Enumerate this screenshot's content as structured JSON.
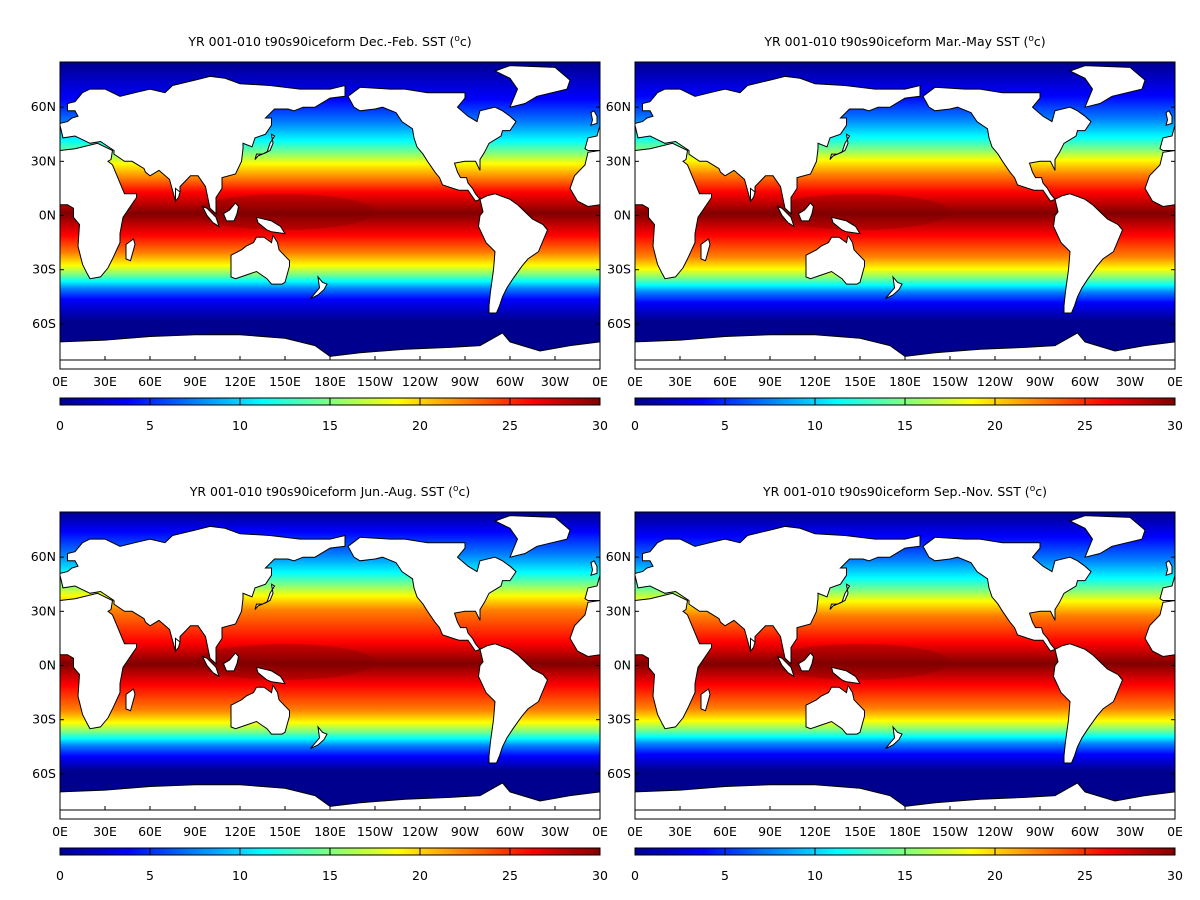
{
  "colormap_colors": [
    "#00008f",
    "#0000ff",
    "#0080ff",
    "#00ffff",
    "#80ff80",
    "#ffff00",
    "#ff8000",
    "#ff0000",
    "#800000"
  ],
  "colorbar_ticks": [
    "0",
    "5",
    "10",
    "15",
    "20",
    "25",
    "30"
  ],
  "lat_labels": [
    "60N",
    "30N",
    "0N",
    "30S",
    "60S"
  ],
  "lon_labels": [
    "0E",
    "30E",
    "60E",
    "90E",
    "120E",
    "150E",
    "180E",
    "150W",
    "120W",
    "90W",
    "60W",
    "30W",
    "0E"
  ],
  "panels": [
    {
      "title": "YR 001-010 t90s90iceform Dec.-Feb. SST (",
      "superscript": "o",
      "title_end": "c)",
      "season": "djf"
    },
    {
      "title": "YR 001-010 t90s90iceform Mar.-May SST (",
      "superscript": "o",
      "title_end": "c)",
      "season": "mam"
    },
    {
      "title": "YR 001-010 t90s90iceform Jun.-Aug. SST (",
      "superscript": "o",
      "title_end": "c)",
      "season": "jja"
    },
    {
      "title": "YR 001-010 t90s90iceform Sep.-Nov. SST (",
      "superscript": "o",
      "title_end": "c)",
      "season": "son"
    }
  ]
}
